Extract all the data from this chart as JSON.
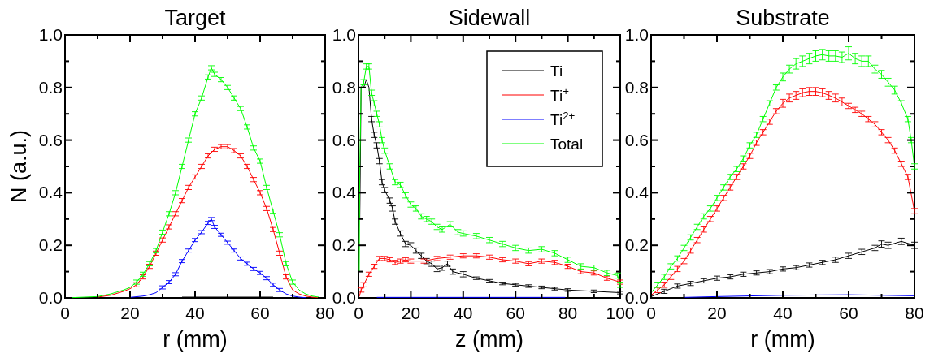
{
  "chart_data": [
    {
      "type": "line",
      "title": "Target",
      "xlabel": "r (mm)",
      "ylabel": "N (a.u.)",
      "xlim": [
        0,
        80
      ],
      "ylim": [
        0,
        1
      ],
      "xticks": [
        0,
        {
          "value": 10,
          "label": null
        },
        20,
        {
          "value": 30,
          "label": null
        },
        40,
        {
          "value": 50,
          "label": null
        },
        60,
        {
          "value": 70,
          "label": null
        },
        80
      ],
      "yticks": [
        {
          "value": 0,
          "label": "0.0"
        },
        {
          "value": 0.1,
          "label": null
        },
        {
          "value": 0.2,
          "label": "0.2"
        },
        {
          "value": 0.3,
          "label": null
        },
        {
          "value": 0.4,
          "label": "0.4"
        },
        {
          "value": 0.5,
          "label": null
        },
        {
          "value": 0.6,
          "label": "0.6"
        },
        {
          "value": 0.7,
          "label": null
        },
        {
          "value": 0.8,
          "label": "0.8"
        },
        {
          "value": 0.9,
          "label": null
        },
        {
          "value": 1,
          "label": "1.0"
        }
      ],
      "series": [
        {
          "color": "#000000",
          "x": [
            36,
            50,
            64
          ],
          "values": [
            0.003,
            0.003,
            0.003
          ]
        },
        {
          "color": "#ff0000",
          "x": [
            10,
            14,
            18,
            20,
            22,
            24,
            26,
            28,
            30,
            32,
            34,
            36,
            38,
            40,
            42,
            44,
            46,
            48,
            50,
            52,
            54,
            56,
            58,
            60,
            62,
            64,
            66,
            68,
            70,
            72,
            74,
            76,
            78
          ],
          "values": [
            0.003,
            0.01,
            0.025,
            0.035,
            0.05,
            0.08,
            0.12,
            0.17,
            0.22,
            0.27,
            0.32,
            0.37,
            0.42,
            0.46,
            0.5,
            0.54,
            0.565,
            0.575,
            0.575,
            0.56,
            0.54,
            0.5,
            0.45,
            0.4,
            0.34,
            0.26,
            0.17,
            0.08,
            0.03,
            0.015,
            0.007,
            0.003,
            0.001
          ],
          "errors": [
            null,
            null,
            null,
            null,
            0.008,
            0.008,
            0.008,
            0.008,
            0.008,
            0.008,
            0.008,
            0.008,
            0.008,
            0.008,
            0.008,
            0.008,
            0.008,
            0.008,
            0.008,
            0.008,
            0.008,
            0.008,
            0.008,
            0.008,
            0.008,
            0.008,
            0.008,
            0.008,
            null,
            null,
            null,
            null,
            null
          ]
        },
        {
          "color": "#0000ff",
          "x": [
            20,
            24,
            26,
            28,
            30,
            32,
            34,
            36,
            38,
            40,
            42,
            44,
            45,
            46,
            48,
            50,
            52,
            54,
            56,
            58,
            60,
            62,
            64,
            66,
            68,
            70,
            72,
            74
          ],
          "values": [
            0.002,
            0.007,
            0.012,
            0.02,
            0.04,
            0.06,
            0.09,
            0.14,
            0.18,
            0.22,
            0.25,
            0.285,
            0.3,
            0.27,
            0.24,
            0.21,
            0.18,
            0.15,
            0.13,
            0.11,
            0.095,
            0.075,
            0.05,
            0.03,
            0.015,
            0.007,
            0.003,
            0.001
          ],
          "errors": [
            null,
            null,
            null,
            null,
            0.006,
            0.006,
            0.006,
            0.006,
            0.006,
            0.006,
            0.006,
            0.006,
            0.006,
            0.006,
            0.006,
            0.006,
            0.006,
            0.006,
            0.006,
            0.006,
            0.006,
            0.006,
            0.006,
            0.006,
            null,
            null,
            null,
            null
          ]
        },
        {
          "color": "#00ff00",
          "x": [
            0,
            10,
            14,
            18,
            20,
            22,
            24,
            26,
            28,
            30,
            32,
            34,
            36,
            38,
            40,
            42,
            44,
            45,
            46,
            48,
            50,
            52,
            54,
            56,
            58,
            60,
            62,
            64,
            66,
            68,
            70,
            72,
            74,
            76,
            78
          ],
          "values": [
            0,
            0.005,
            0.015,
            0.03,
            0.04,
            0.06,
            0.09,
            0.13,
            0.18,
            0.25,
            0.32,
            0.4,
            0.5,
            0.6,
            0.7,
            0.76,
            0.84,
            0.875,
            0.85,
            0.83,
            0.8,
            0.76,
            0.72,
            0.65,
            0.57,
            0.52,
            0.42,
            0.33,
            0.24,
            0.13,
            0.06,
            0.03,
            0.015,
            0.007,
            0.003
          ],
          "errors": [
            null,
            null,
            null,
            null,
            null,
            0.008,
            0.008,
            0.008,
            0.008,
            0.008,
            0.008,
            0.008,
            0.008,
            0.008,
            0.008,
            0.008,
            0.008,
            0.008,
            0.008,
            0.008,
            0.008,
            0.008,
            0.008,
            0.008,
            0.008,
            0.008,
            0.008,
            0.008,
            0.008,
            0.008,
            0.008,
            null,
            null,
            null,
            null
          ]
        }
      ]
    },
    {
      "type": "line",
      "title": "Sidewall",
      "xlabel": "z (mm)",
      "xlim": [
        0,
        100
      ],
      "ylim": [
        0,
        1
      ],
      "legend": "top right",
      "xticks": [
        0,
        {
          "value": 10,
          "label": null
        },
        20,
        {
          "value": 30,
          "label": null
        },
        40,
        {
          "value": 50,
          "label": null
        },
        60,
        {
          "value": 70,
          "label": null
        },
        80,
        {
          "value": 90,
          "label": null
        },
        100
      ],
      "yticks": [
        {
          "value": 0,
          "label": "0.0"
        },
        {
          "value": 0.1,
          "label": null
        },
        {
          "value": 0.2,
          "label": "0.2"
        },
        {
          "value": 0.3,
          "label": null
        },
        {
          "value": 0.4,
          "label": "0.4"
        },
        {
          "value": 0.5,
          "label": null
        },
        {
          "value": 0.6,
          "label": "0.6"
        },
        {
          "value": 0.7,
          "label": null
        },
        {
          "value": 0.8,
          "label": "0.8"
        },
        {
          "value": 0.9,
          "label": null
        },
        {
          "value": 1,
          "label": "1.0"
        }
      ],
      "series": [
        {
          "name": "Ti",
          "color": "#000000",
          "x": [
            0.5,
            1,
            2,
            3,
            4,
            5,
            6,
            7,
            8,
            9,
            10,
            12,
            13,
            14,
            16,
            18,
            20,
            22,
            24,
            26,
            28,
            30,
            32,
            34,
            36,
            40,
            45,
            50,
            55,
            60,
            65,
            70,
            75,
            80,
            90,
            100
          ],
          "values": [
            0.3,
            0.8,
            0.8,
            0.83,
            0.8,
            0.68,
            0.62,
            0.58,
            0.52,
            0.44,
            0.41,
            0.37,
            0.34,
            0.29,
            0.245,
            0.205,
            0.2,
            0.18,
            0.16,
            0.14,
            0.13,
            0.11,
            0.115,
            0.13,
            0.1,
            0.09,
            0.075,
            0.065,
            0.055,
            0.05,
            0.045,
            0.04,
            0.035,
            0.03,
            0.025,
            0.02
          ],
          "errors": [
            null,
            null,
            null,
            null,
            null,
            0.01,
            0.01,
            0.01,
            0.01,
            0.01,
            0.01,
            0.01,
            0.01,
            0.01,
            0.01,
            0.01,
            0.01,
            0.01,
            0.01,
            0.01,
            0.01,
            0.01,
            0.01,
            0.01,
            0.01,
            0.01,
            0.005,
            0.005,
            0.005,
            0.005,
            0.005,
            0.005,
            0.005,
            0.005,
            0.005,
            0.005
          ]
        },
        {
          "name": "Ti$^{+}$",
          "color": "#ff0000",
          "x": [
            0.3,
            1,
            2,
            4,
            6,
            8,
            10,
            12,
            14,
            16,
            18,
            20,
            25,
            30,
            35,
            40,
            45,
            50,
            55,
            60,
            65,
            70,
            75,
            80,
            85,
            90,
            95,
            100
          ],
          "values": [
            0.005,
            0.03,
            0.05,
            0.09,
            0.12,
            0.15,
            0.15,
            0.145,
            0.135,
            0.14,
            0.145,
            0.14,
            0.14,
            0.15,
            0.155,
            0.16,
            0.16,
            0.155,
            0.145,
            0.14,
            0.13,
            0.14,
            0.135,
            0.12,
            0.1,
            0.095,
            0.075,
            0.06
          ],
          "errors": [
            null,
            0.008,
            0.008,
            0.008,
            0.008,
            0.008,
            0.008,
            0.008,
            0.008,
            0.008,
            0.008,
            0.008,
            0.008,
            0.008,
            0.008,
            0.008,
            0.008,
            0.008,
            0.008,
            0.008,
            0.008,
            0.008,
            0.008,
            0.008,
            0.008,
            0.008,
            0.008,
            0.008
          ]
        },
        {
          "name": "Ti$^{2+}$",
          "color": "#0000ff",
          "x": [
            7,
            20,
            40,
            60,
            79
          ],
          "values": [
            0.002,
            0.002,
            0.002,
            0.002,
            0.002
          ]
        },
        {
          "name": "Total",
          "color": "#00ff00",
          "x": [
            0.3,
            0.5,
            1,
            2,
            3,
            4,
            5,
            6,
            7,
            8,
            9,
            10,
            12,
            14,
            16,
            18,
            20,
            22,
            24,
            26,
            28,
            30,
            32,
            35,
            38,
            40,
            45,
            50,
            55,
            60,
            65,
            70,
            75,
            80,
            85,
            90,
            95,
            99,
            100
          ],
          "values": [
            0.1,
            0.5,
            0.8,
            0.82,
            0.88,
            0.88,
            0.78,
            0.74,
            0.7,
            0.66,
            0.6,
            0.56,
            0.5,
            0.44,
            0.43,
            0.39,
            0.355,
            0.34,
            0.31,
            0.3,
            0.29,
            0.27,
            0.26,
            0.28,
            0.25,
            0.245,
            0.235,
            0.22,
            0.205,
            0.19,
            0.18,
            0.185,
            0.17,
            0.145,
            0.12,
            0.115,
            0.095,
            0.085,
            0.05
          ],
          "errors": [
            null,
            null,
            null,
            0.01,
            0.01,
            0.01,
            0.01,
            0.01,
            0.01,
            0.01,
            0.01,
            0.01,
            0.01,
            0.01,
            0.01,
            0.01,
            0.01,
            0.01,
            0.01,
            0.01,
            0.01,
            0.01,
            0.01,
            0.01,
            0.01,
            0.01,
            0.01,
            0.01,
            0.01,
            0.01,
            0.01,
            0.01,
            0.01,
            0.01,
            0.01,
            0.01,
            0.01,
            0.01,
            0.01
          ]
        }
      ]
    },
    {
      "type": "line",
      "title": "Substrate",
      "xlabel": "r (mm)",
      "xlim": [
        0,
        80
      ],
      "ylim": [
        0,
        1
      ],
      "xticks": [
        0,
        {
          "value": 10,
          "label": null
        },
        20,
        {
          "value": 30,
          "label": null
        },
        40,
        {
          "value": 50,
          "label": null
        },
        60,
        {
          "value": 70,
          "label": null
        },
        80
      ],
      "yticks": [
        {
          "value": 0,
          "label": "0.0"
        },
        {
          "value": 0.1,
          "label": null
        },
        {
          "value": 0.2,
          "label": "0.2"
        },
        {
          "value": 0.3,
          "label": null
        },
        {
          "value": 0.4,
          "label": "0.4"
        },
        {
          "value": 0.5,
          "label": null
        },
        {
          "value": 0.6,
          "label": "0.6"
        },
        {
          "value": 0.7,
          "label": null
        },
        {
          "value": 0.8,
          "label": "0.8"
        },
        {
          "value": 0.9,
          "label": null
        },
        {
          "value": 1,
          "label": "1.0"
        }
      ],
      "series": [
        {
          "color": "#000000",
          "x": [
            0,
            4,
            8,
            12,
            16,
            20,
            24,
            28,
            32,
            36,
            40,
            44,
            48,
            52,
            56,
            60,
            64,
            68,
            70,
            72,
            76,
            80
          ],
          "values": [
            0.005,
            0.025,
            0.045,
            0.055,
            0.065,
            0.075,
            0.08,
            0.09,
            0.095,
            0.1,
            0.11,
            0.115,
            0.125,
            0.135,
            0.145,
            0.16,
            0.175,
            0.19,
            0.205,
            0.2,
            0.215,
            0.2
          ],
          "errors": [
            null,
            0.008,
            0.008,
            0.008,
            0.008,
            0.008,
            0.008,
            0.008,
            0.008,
            0.008,
            0.008,
            0.008,
            0.008,
            0.008,
            0.01,
            0.01,
            0.01,
            0.01,
            0.012,
            0.012,
            0.012,
            0.012
          ]
        },
        {
          "color": "#ff0000",
          "x": [
            0,
            2,
            4,
            6,
            8,
            10,
            12,
            14,
            16,
            18,
            20,
            22,
            24,
            26,
            28,
            30,
            32,
            34,
            36,
            38,
            40,
            42,
            44,
            46,
            48,
            50,
            52,
            54,
            56,
            58,
            60,
            62,
            64,
            66,
            68,
            70,
            72,
            74,
            76,
            78,
            80
          ],
          "values": [
            0.01,
            0.03,
            0.05,
            0.08,
            0.11,
            0.14,
            0.18,
            0.22,
            0.26,
            0.3,
            0.34,
            0.38,
            0.42,
            0.46,
            0.5,
            0.54,
            0.59,
            0.63,
            0.67,
            0.71,
            0.74,
            0.76,
            0.77,
            0.78,
            0.785,
            0.785,
            0.78,
            0.77,
            0.76,
            0.745,
            0.73,
            0.715,
            0.7,
            0.68,
            0.66,
            0.63,
            0.6,
            0.56,
            0.51,
            0.46,
            0.33
          ],
          "errors": [
            null,
            0.01,
            0.01,
            0.01,
            0.01,
            0.01,
            0.01,
            0.01,
            0.01,
            0.01,
            0.01,
            0.01,
            0.01,
            0.01,
            0.01,
            0.01,
            0.01,
            0.01,
            0.01,
            0.01,
            0.015,
            0.015,
            0.015,
            0.015,
            0.015,
            0.015,
            0.015,
            0.015,
            0.015,
            0.015,
            0.01,
            0.01,
            0.01,
            0.01,
            0.01,
            0.01,
            0.01,
            0.01,
            0.01,
            0.01,
            0.01
          ]
        },
        {
          "color": "#0000ff",
          "x": [
            10,
            20,
            40,
            60,
            80
          ],
          "values": [
            0.002,
            0.005,
            0.01,
            0.012,
            0.008
          ]
        },
        {
          "color": "#00ff00",
          "x": [
            0,
            2,
            4,
            6,
            8,
            10,
            12,
            14,
            16,
            18,
            20,
            22,
            24,
            26,
            28,
            30,
            32,
            34,
            36,
            38,
            40,
            42,
            44,
            46,
            48,
            50,
            52,
            54,
            56,
            58,
            60,
            62,
            64,
            66,
            68,
            70,
            72,
            74,
            76,
            78,
            79,
            80
          ],
          "values": [
            0.02,
            0.05,
            0.08,
            0.12,
            0.15,
            0.19,
            0.23,
            0.27,
            0.31,
            0.34,
            0.38,
            0.42,
            0.46,
            0.49,
            0.53,
            0.58,
            0.62,
            0.68,
            0.74,
            0.8,
            0.84,
            0.87,
            0.89,
            0.9,
            0.91,
            0.92,
            0.925,
            0.92,
            0.92,
            0.915,
            0.93,
            0.91,
            0.9,
            0.9,
            0.87,
            0.85,
            0.82,
            0.79,
            0.74,
            0.68,
            0.6,
            0.5
          ],
          "errors": [
            null,
            0.01,
            0.01,
            0.01,
            0.01,
            0.01,
            0.01,
            0.01,
            0.01,
            0.01,
            0.01,
            0.01,
            0.01,
            0.01,
            0.01,
            0.01,
            0.01,
            0.01,
            0.01,
            0.01,
            0.015,
            0.015,
            0.02,
            0.02,
            0.02,
            0.02,
            0.02,
            0.02,
            0.02,
            0.02,
            0.025,
            0.02,
            0.02,
            0.02,
            0.015,
            0.015,
            0.015,
            0.015,
            0.01,
            0.01,
            0.01,
            0.01
          ]
        }
      ]
    }
  ]
}
